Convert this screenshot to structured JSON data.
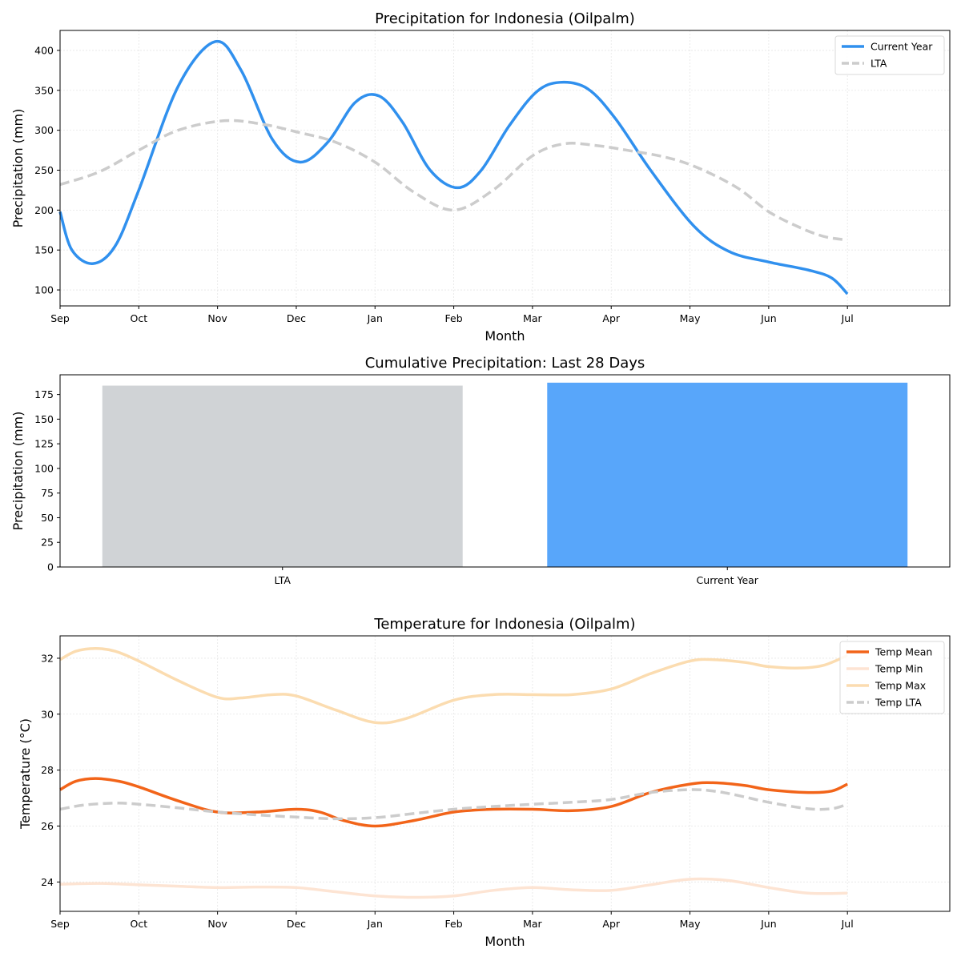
{
  "chart_data": [
    {
      "type": "line",
      "title": "Precipitation for Indonesia (Oilpalm)",
      "xlabel": "Month",
      "ylabel": "Precipitation (mm)",
      "categories": [
        "Sep",
        "Oct",
        "Nov",
        "Dec",
        "Jan",
        "Feb",
        "Mar",
        "Apr",
        "May",
        "Jun",
        "Jul"
      ],
      "xlim": [
        0,
        11.3
      ],
      "ylim": [
        80,
        425
      ],
      "yticks": [
        100,
        150,
        200,
        250,
        300,
        350,
        400
      ],
      "grid": true,
      "legend_position": "top-right",
      "series": [
        {
          "name": "Current Year",
          "color": "#3090ee",
          "style": "solid",
          "points": [
            [
              0,
              198
            ],
            [
              0.15,
              150
            ],
            [
              0.42,
              133
            ],
            [
              0.7,
              155
            ],
            [
              1,
              225
            ],
            [
              1.5,
              355
            ],
            [
              1.97,
              411
            ],
            [
              2.3,
              375
            ],
            [
              2.7,
              288
            ],
            [
              3.05,
              260
            ],
            [
              3.4,
              285
            ],
            [
              3.75,
              335
            ],
            [
              4.05,
              343
            ],
            [
              4.35,
              310
            ],
            [
              4.7,
              250
            ],
            [
              5.05,
              228
            ],
            [
              5.35,
              250
            ],
            [
              5.7,
              305
            ],
            [
              6.05,
              348
            ],
            [
              6.35,
              360
            ],
            [
              6.7,
              352
            ],
            [
              7.05,
              315
            ],
            [
              7.5,
              250
            ],
            [
              8.05,
              180
            ],
            [
              8.5,
              148
            ],
            [
              9.0,
              135
            ],
            [
              9.5,
              125
            ],
            [
              9.8,
              115
            ],
            [
              10.0,
              95
            ]
          ]
        },
        {
          "name": "LTA",
          "color": "#cccccc",
          "style": "dashed",
          "points": [
            [
              0,
              232
            ],
            [
              0.5,
              248
            ],
            [
              1.0,
              275
            ],
            [
              1.5,
              300
            ],
            [
              2.1,
              312
            ],
            [
              2.6,
              307
            ],
            [
              3.0,
              298
            ],
            [
              3.5,
              285
            ],
            [
              4.0,
              260
            ],
            [
              4.5,
              222
            ],
            [
              5.0,
              200
            ],
            [
              5.5,
              225
            ],
            [
              6.0,
              268
            ],
            [
              6.4,
              283
            ],
            [
              6.8,
              281
            ],
            [
              7.2,
              275
            ],
            [
              7.7,
              266
            ],
            [
              8.1,
              253
            ],
            [
              8.6,
              228
            ],
            [
              9.0,
              198
            ],
            [
              9.4,
              178
            ],
            [
              9.7,
              167
            ],
            [
              9.95,
              163
            ]
          ]
        }
      ]
    },
    {
      "type": "bar",
      "title": "Cumulative Precipitation: Last 28 Days",
      "xlabel": "",
      "ylabel": "Precipitation (mm)",
      "categories": [
        "LTA",
        "Current Year"
      ],
      "values": [
        184,
        187
      ],
      "colors": [
        "#d0d3d6",
        "#58a6fa"
      ],
      "ylim": [
        0,
        195
      ],
      "yticks": [
        0,
        25,
        50,
        75,
        100,
        125,
        150,
        175
      ],
      "grid": false
    },
    {
      "type": "line",
      "title": "Temperature for Indonesia (Oilpalm)",
      "xlabel": "Month",
      "ylabel": "Temperature (°C)",
      "categories": [
        "Sep",
        "Oct",
        "Nov",
        "Dec",
        "Jan",
        "Feb",
        "Mar",
        "Apr",
        "May",
        "Jun",
        "Jul"
      ],
      "xlim": [
        0,
        11.3
      ],
      "ylim": [
        22.95,
        32.8
      ],
      "yticks": [
        24,
        26,
        28,
        30,
        32
      ],
      "grid": true,
      "legend_position": "top-right",
      "series": [
        {
          "name": "Temp Mean",
          "color": "#f26419",
          "style": "solid",
          "points": [
            [
              0,
              27.3
            ],
            [
              0.2,
              27.6
            ],
            [
              0.45,
              27.7
            ],
            [
              0.75,
              27.6
            ],
            [
              1.0,
              27.4
            ],
            [
              1.5,
              26.9
            ],
            [
              2.0,
              26.5
            ],
            [
              2.5,
              26.5
            ],
            [
              3.0,
              26.6
            ],
            [
              3.3,
              26.5
            ],
            [
              3.6,
              26.2
            ],
            [
              4.0,
              26.0
            ],
            [
              4.5,
              26.2
            ],
            [
              5.0,
              26.5
            ],
            [
              5.5,
              26.6
            ],
            [
              6.0,
              26.6
            ],
            [
              6.5,
              26.55
            ],
            [
              7.0,
              26.7
            ],
            [
              7.5,
              27.2
            ],
            [
              8.0,
              27.5
            ],
            [
              8.3,
              27.55
            ],
            [
              8.7,
              27.45
            ],
            [
              9.0,
              27.3
            ],
            [
              9.5,
              27.2
            ],
            [
              9.8,
              27.25
            ],
            [
              10.0,
              27.5
            ]
          ]
        },
        {
          "name": "Temp Min",
          "color": "#fde4d3",
          "style": "solid",
          "points": [
            [
              0,
              23.92
            ],
            [
              0.5,
              23.95
            ],
            [
              1.0,
              23.9
            ],
            [
              1.5,
              23.85
            ],
            [
              2.0,
              23.8
            ],
            [
              2.5,
              23.82
            ],
            [
              3.0,
              23.8
            ],
            [
              3.5,
              23.65
            ],
            [
              4.0,
              23.5
            ],
            [
              4.5,
              23.45
            ],
            [
              5.0,
              23.5
            ],
            [
              5.5,
              23.7
            ],
            [
              6.0,
              23.8
            ],
            [
              6.5,
              23.72
            ],
            [
              7.0,
              23.7
            ],
            [
              7.5,
              23.9
            ],
            [
              8.0,
              24.1
            ],
            [
              8.5,
              24.05
            ],
            [
              9.0,
              23.8
            ],
            [
              9.5,
              23.6
            ],
            [
              10.0,
              23.6
            ]
          ]
        },
        {
          "name": "Temp Max",
          "color": "#fbdcb0",
          "style": "solid",
          "points": [
            [
              0,
              31.95
            ],
            [
              0.2,
              32.25
            ],
            [
              0.45,
              32.35
            ],
            [
              0.7,
              32.25
            ],
            [
              1.0,
              31.9
            ],
            [
              1.5,
              31.2
            ],
            [
              2.0,
              30.6
            ],
            [
              2.3,
              30.58
            ],
            [
              2.7,
              30.7
            ],
            [
              3.0,
              30.65
            ],
            [
              3.5,
              30.15
            ],
            [
              4.0,
              29.7
            ],
            [
              4.4,
              29.85
            ],
            [
              5.0,
              30.5
            ],
            [
              5.5,
              30.7
            ],
            [
              6.0,
              30.7
            ],
            [
              6.5,
              30.7
            ],
            [
              7.0,
              30.9
            ],
            [
              7.5,
              31.45
            ],
            [
              8.0,
              31.9
            ],
            [
              8.3,
              31.95
            ],
            [
              8.7,
              31.85
            ],
            [
              9.0,
              31.7
            ],
            [
              9.4,
              31.65
            ],
            [
              9.7,
              31.75
            ],
            [
              10.0,
              32.1
            ]
          ]
        },
        {
          "name": "Temp LTA",
          "color": "#cccccc",
          "style": "dashed",
          "points": [
            [
              0,
              26.6
            ],
            [
              0.3,
              26.75
            ],
            [
              0.7,
              26.82
            ],
            [
              1.0,
              26.78
            ],
            [
              1.5,
              26.65
            ],
            [
              2.0,
              26.5
            ],
            [
              2.5,
              26.4
            ],
            [
              3.0,
              26.32
            ],
            [
              3.5,
              26.26
            ],
            [
              4.0,
              26.3
            ],
            [
              4.5,
              26.45
            ],
            [
              5.0,
              26.6
            ],
            [
              5.5,
              26.7
            ],
            [
              6.0,
              26.78
            ],
            [
              6.5,
              26.85
            ],
            [
              7.0,
              26.95
            ],
            [
              7.5,
              27.2
            ],
            [
              8.0,
              27.3
            ],
            [
              8.3,
              27.25
            ],
            [
              8.6,
              27.1
            ],
            [
              9.0,
              26.85
            ],
            [
              9.5,
              26.62
            ],
            [
              9.8,
              26.62
            ],
            [
              10.0,
              26.78
            ]
          ]
        }
      ]
    }
  ]
}
